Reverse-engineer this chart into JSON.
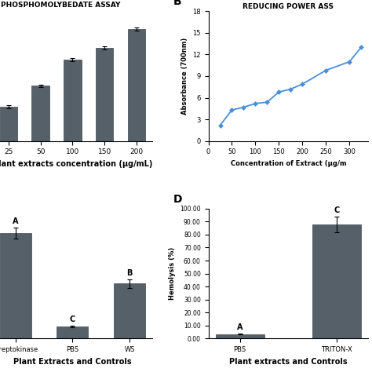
{
  "panel_A": {
    "title": "PHOSPHOMOLYBEDATE ASSAY",
    "categories": [
      "25",
      "50",
      "100",
      "150",
      "200"
    ],
    "values": [
      4.2,
      6.8,
      10.0,
      11.5,
      13.8
    ],
    "errors": [
      0.2,
      0.15,
      0.18,
      0.2,
      0.15
    ],
    "bar_color": "#556068",
    "xlabel": "Plant extracts concentration (μg/mL)",
    "ylabel": "",
    "ylim": [
      0,
      16
    ],
    "yticks": [
      0,
      2,
      4,
      6,
      8,
      10,
      12,
      14,
      16
    ]
  },
  "panel_B": {
    "panel_label": "B",
    "title": "REDUCING POWER ASS",
    "x": [
      25,
      50,
      75,
      100,
      125,
      150,
      175,
      200,
      250,
      300,
      325
    ],
    "y": [
      2.2,
      4.3,
      4.7,
      5.2,
      5.4,
      6.8,
      7.2,
      7.9,
      9.8,
      11.0,
      13.0
    ],
    "line_color": "#4a90d9",
    "xlabel": "Concentration of Extract (μg/m",
    "ylabel": "Absorbance (700nm)",
    "ylim": [
      0,
      18
    ],
    "yticks": [
      0,
      3,
      6,
      9,
      12,
      15,
      18
    ],
    "xticks": [
      0,
      50,
      100,
      150,
      200,
      250,
      300
    ]
  },
  "panel_C": {
    "panel_label": "A",
    "categories": [
      "Streptokinase",
      "PBS",
      "WS"
    ],
    "values": [
      73.0,
      8.5,
      38.0
    ],
    "errors": [
      4.0,
      0.5,
      3.0
    ],
    "bar_color": "#556068",
    "labels": [
      "A",
      "C",
      "B"
    ],
    "xlabel": "Plant Extracts and Controls",
    "ylabel": "",
    "ylim": [
      0,
      90
    ],
    "yticks": [
      0,
      10,
      20,
      30,
      40,
      50,
      60,
      70,
      80,
      90
    ]
  },
  "panel_D": {
    "panel_label": "D",
    "categories": [
      "PBS",
      "TRITON-X"
    ],
    "values": [
      3.5,
      88.0
    ],
    "errors": [
      0.5,
      6.0
    ],
    "bar_color": "#556068",
    "labels": [
      "A",
      "C"
    ],
    "xlabel": "Plant extracts and Controls",
    "ylabel": "Hemolysis (%)",
    "ylim": [
      0,
      100
    ],
    "ytick_labels": [
      "0.00",
      "10.00",
      "20.00",
      "30.00",
      "40.00",
      "50.00",
      "60.00",
      "70.00",
      "80.00",
      "90.00",
      "100.00"
    ]
  },
  "background_color": "#ffffff",
  "bar_edge_color": "#3a4a50"
}
